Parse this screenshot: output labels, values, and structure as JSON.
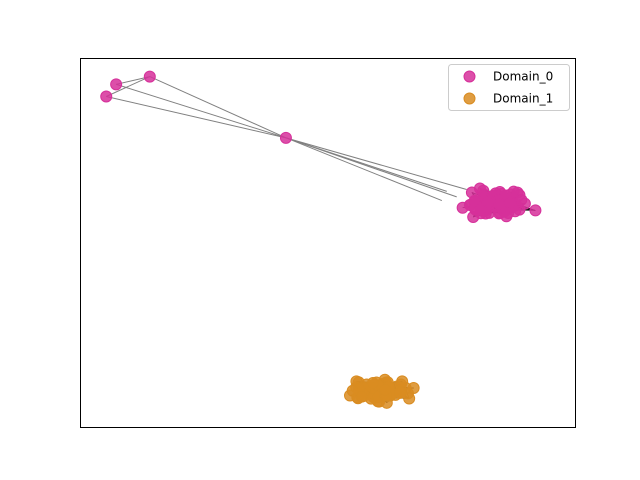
{
  "chart_data": {
    "type": "scatter",
    "kind": "network graph",
    "axes_visible": false,
    "ticks_visible": false,
    "grid": false,
    "legend_placement": "top-right",
    "edge_color": "#808080",
    "xlim": [
      0,
      1
    ],
    "ylim": [
      0,
      1
    ],
    "hub_edges": [
      [
        0.415,
        0.785
      ],
      [
        0.052,
        0.897
      ],
      [
        0.072,
        0.93
      ],
      [
        0.14,
        0.951
      ]
    ],
    "bridge_edges": [
      {
        "from": [
          0.415,
          0.785
        ],
        "to": [
          0.74,
          0.64
        ]
      },
      {
        "from": [
          0.415,
          0.785
        ],
        "to": [
          0.76,
          0.625
        ]
      },
      {
        "from": [
          0.415,
          0.785
        ],
        "to": [
          0.78,
          0.645
        ]
      },
      {
        "from": [
          0.415,
          0.785
        ],
        "to": [
          0.73,
          0.615
        ]
      }
    ],
    "series": [
      {
        "name": "Domain_0",
        "color": "#d6309a",
        "points": [
          [
            0.052,
            0.897
          ],
          [
            0.072,
            0.93
          ],
          [
            0.14,
            0.951
          ],
          [
            0.415,
            0.785
          ]
        ],
        "cluster": {
          "center": [
            0.84,
            0.61
          ],
          "spread": [
            0.105,
            0.06
          ],
          "count": 95
        }
      },
      {
        "name": "Domain_1",
        "color": "#d98c21",
        "cluster": {
          "center": [
            0.6,
            0.1
          ],
          "spread": [
            0.105,
            0.055
          ],
          "count": 85
        }
      }
    ]
  }
}
